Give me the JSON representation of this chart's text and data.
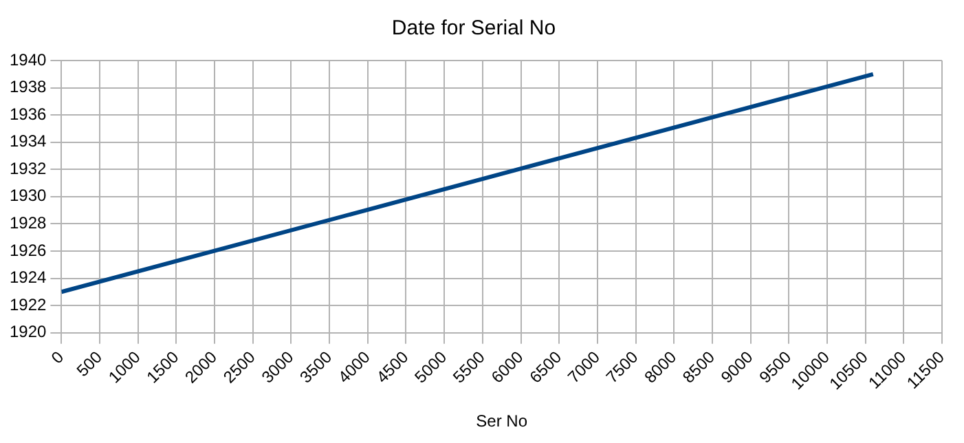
{
  "chart_data": {
    "type": "line",
    "title": "Date for Serial No",
    "xlabel": "Ser No",
    "series": [
      {
        "color": "#004586",
        "x": [
          0,
          10600
        ],
        "values": [
          1923,
          1939
        ]
      }
    ],
    "xlim": [
      0,
      11500
    ],
    "xticks": [
      0,
      500,
      1000,
      1500,
      2000,
      2500,
      3000,
      3500,
      4000,
      4500,
      5000,
      5500,
      6000,
      6500,
      7000,
      7500,
      8000,
      8500,
      9000,
      9500,
      10000,
      10500,
      11000,
      11500
    ],
    "ylim": [
      1920,
      1940
    ],
    "yticks": [
      1920,
      1922,
      1924,
      1926,
      1928,
      1930,
      1932,
      1934,
      1936,
      1938,
      1940
    ],
    "grid": true,
    "marker": "none",
    "line_style": "solid",
    "legend": false
  }
}
